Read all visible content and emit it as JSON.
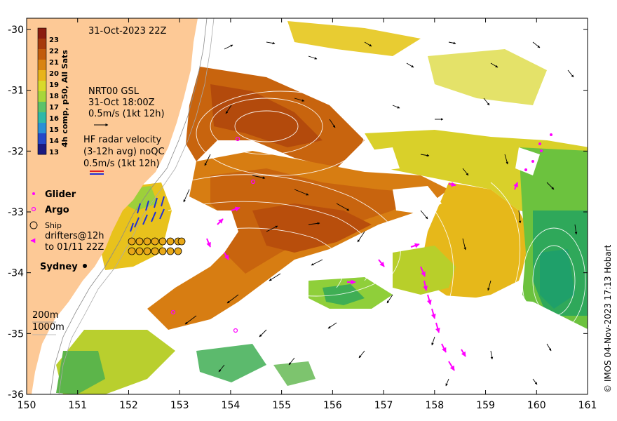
{
  "map": {
    "timestamp": "31-Oct-2023 22Z",
    "x_ticks": [
      "150",
      "151",
      "152",
      "153",
      "154",
      "155",
      "156",
      "157",
      "158",
      "159",
      "160",
      "161"
    ],
    "y_ticks": [
      "-30",
      "-31",
      "-32",
      "-33",
      "-34",
      "-35",
      "-36"
    ],
    "credit": "© IMOS 04-Nov-2023 17:13 Hobart",
    "colorbar": {
      "title": "4h comp, p50, All Sats",
      "ticks": [
        "23",
        "22",
        "21",
        "20",
        "19",
        "18",
        "17",
        "16",
        "15",
        "14",
        "13"
      ],
      "colors": [
        "#8b1d0f",
        "#a63a0c",
        "#c25c0d",
        "#d98412",
        "#e8b41b",
        "#d9d92a",
        "#a8d63a",
        "#5cc26a",
        "#2fb8a8",
        "#2a8fd6",
        "#2548c8",
        "#1a1a80"
      ]
    },
    "legend": {
      "gsl_title": "NRT00 GSL",
      "gsl_time": "31-Oct 18:00Z",
      "gsl_scale": "0.5m/s (1kt 12h)",
      "hf_title": "HF radar velocity",
      "hf_avg": "(3-12h avg) noQC",
      "hf_scale": "0.5m/s (1kt 12h)",
      "glider": "Glider",
      "argo": "Argo",
      "ship": "Ship",
      "drifters_1": "drifters@12h",
      "drifters_2": "to 01/11 22Z",
      "city": "Sydney",
      "depth_200": "200m",
      "depth_1000": "1000m"
    },
    "colors": {
      "land": "#fdc996",
      "sst_warm": "#c8640e",
      "sst_mid": "#e8a818",
      "sst_cool": "#9ccf2e",
      "sst_cold": "#2fa85a",
      "drifter": "#ff00ff",
      "hf": "#1f2fd6"
    }
  }
}
